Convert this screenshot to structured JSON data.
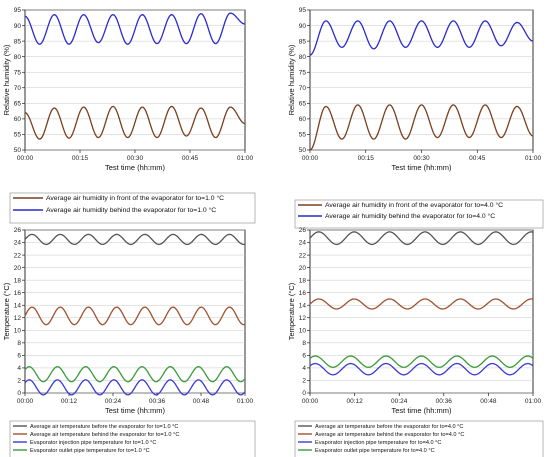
{
  "chart_data": [
    {
      "type": "line",
      "panel": "top-left",
      "ylabel": "Relative humidity (%)",
      "xlabel": "Test time (hh:mm)",
      "ylim": [
        50,
        95
      ],
      "yticks": [
        50,
        55,
        60,
        65,
        70,
        75,
        80,
        85,
        90,
        95
      ],
      "xticks": [
        "00:00",
        "00:15",
        "00:30",
        "00:45",
        "01:00"
      ],
      "series": [
        {
          "name": "Average air humidity in front of the evaporator for to=1.0 °C",
          "color": "#7a3f1e",
          "mean": 58.5,
          "amplitude": 4.8,
          "cycles": 7.8,
          "phase": 0.2,
          "values": [
            62,
            53.5,
            63.5,
            53.8,
            63.8,
            54,
            64,
            54,
            63.8,
            54,
            64,
            54.5,
            63.5,
            54,
            63.8,
            58.5
          ]
        },
        {
          "name": "Average air humidity behind the evaporator for to=1.0 °C",
          "color": "#2a2ad0",
          "mean": 88.7,
          "amplitude": 4.8,
          "cycles": 7.8,
          "phase": 0.2,
          "values": [
            93,
            84,
            93.5,
            84,
            93.5,
            84.5,
            93.5,
            84,
            93.5,
            84.2,
            93.5,
            84.2,
            93.8,
            84.2,
            94,
            90.5
          ]
        }
      ],
      "legend_position": "bottom"
    },
    {
      "type": "line",
      "panel": "top-right",
      "ylabel": "Relative humidity (%)",
      "xlabel": "Test time (hh:mm)",
      "ylim": [
        50,
        95
      ],
      "yticks": [
        50,
        55,
        60,
        65,
        70,
        75,
        80,
        85,
        90,
        95
      ],
      "xticks": [
        "00:00",
        "00:15",
        "00:30",
        "00:45",
        "01:00"
      ],
      "series": [
        {
          "name": "Average air humidity in front of the evaporator for to=4.0 °C",
          "color": "#7a3f1e",
          "mean": 59,
          "amplitude": 5.5,
          "cycles": 7.3,
          "phase": 0.3,
          "values": [
            50,
            64,
            53.5,
            64.5,
            53.5,
            64.5,
            53.5,
            64.5,
            54,
            64.5,
            54,
            64.5,
            54,
            64,
            54.5
          ]
        },
        {
          "name": "Average air humidity behind the evaporator for to=4.0 °C",
          "color": "#2a2ad0",
          "mean": 87.2,
          "amplitude": 4.4,
          "cycles": 7.3,
          "phase": 0.3,
          "values": [
            80.5,
            91.5,
            83,
            91.5,
            82.5,
            91.5,
            83,
            91.5,
            83,
            91.5,
            83,
            91.5,
            83.5,
            91,
            85
          ]
        }
      ],
      "legend_position": "bottom"
    },
    {
      "type": "line",
      "panel": "bottom-left",
      "ylabel": "Temperature (°C)",
      "xlabel": "Test time (hh:mm)",
      "ylim": [
        0,
        26
      ],
      "yticks": [
        0,
        2,
        4,
        6,
        8,
        10,
        12,
        14,
        16,
        18,
        20,
        22,
        24,
        26
      ],
      "xticks": [
        "00:00",
        "00:12",
        "00:24",
        "00:36",
        "00:48",
        "01:00"
      ],
      "series": [
        {
          "name": "Average air temperature before the evaporator for to=1.0 °C",
          "color": "#555555",
          "mean": 24.5,
          "amplitude": 0.8,
          "cycles": 7.8,
          "phase": 0.0
        },
        {
          "name": "Average air temperature behind the evaporator for to=1.0 °C",
          "color": "#a0522d",
          "mean": 12.3,
          "amplitude": 1.4,
          "cycles": 7.8,
          "phase": 0.0
        },
        {
          "name": "Evaporator injection pipe temperature for to=1.0 °C",
          "color": "#3a3ad8",
          "mean": 0.9,
          "amplitude": 1.2,
          "cycles": 7.8,
          "phase": 0.1
        },
        {
          "name": "Evaporator outlet pipe temperature for to=1.0 °C",
          "color": "#3a9a3a",
          "mean": 3.0,
          "amplitude": 1.2,
          "cycles": 7.8,
          "phase": 0.1
        }
      ],
      "legend_position": "bottom"
    },
    {
      "type": "line",
      "panel": "bottom-right",
      "ylabel": "Temperature (°C)",
      "xlabel": "Test time (hh:mm)",
      "ylim": [
        0,
        26
      ],
      "yticks": [
        0,
        2,
        4,
        6,
        8,
        10,
        12,
        14,
        16,
        18,
        20,
        22,
        24,
        26
      ],
      "xticks": [
        "00:00",
        "00:12",
        "00:24",
        "00:36",
        "00:48",
        "01:00"
      ],
      "series": [
        {
          "name": "Average air temperature before the evaporator for to=4.0 °C",
          "color": "#555555",
          "mean": 24.7,
          "amplitude": 1.0,
          "cycles": 6.3,
          "phase": 0.0
        },
        {
          "name": "Average air temperature behind the evaporator for to=4.0 °C",
          "color": "#a0522d",
          "mean": 14.2,
          "amplitude": 0.8,
          "cycles": 6.3,
          "phase": 0.0
        },
        {
          "name": "Evaporator injection pipe temperature for to=4.0 °C",
          "color": "#3a3ad8",
          "mean": 3.8,
          "amplitude": 0.9,
          "cycles": 6.3,
          "phase": 0.1
        },
        {
          "name": "Evaporator outlet pipe temperature for to=4.0 °C",
          "color": "#3a9a3a",
          "mean": 5.0,
          "amplitude": 0.9,
          "cycles": 6.3,
          "phase": 0.1
        }
      ],
      "legend_position": "bottom"
    }
  ]
}
